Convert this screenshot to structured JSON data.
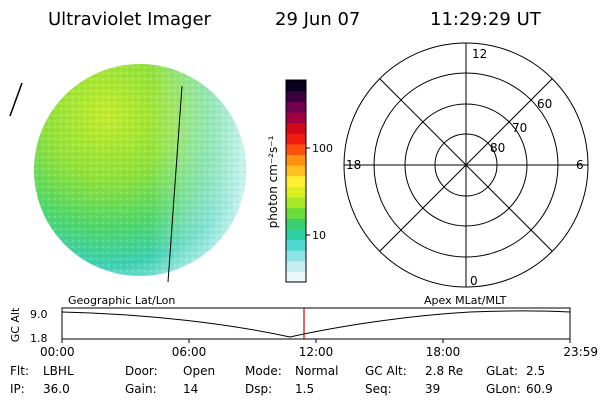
{
  "header": {
    "title": "Ultraviolet Imager",
    "date": "29 Jun 07",
    "time": "11:29:29 UT"
  },
  "colorbar": {
    "unit_label": "photon cm⁻²s⁻¹",
    "ticks": [
      "100",
      "10"
    ],
    "colors": [
      "#e8f8fb",
      "#c6ecf0",
      "#8fe3e8",
      "#4fd8d0",
      "#2ecfa0",
      "#3ad070",
      "#6adb3c",
      "#a6e82a",
      "#d8f020",
      "#ffee33",
      "#ffc020",
      "#ff9010",
      "#ff5010",
      "#f01a10",
      "#d00818",
      "#a00040",
      "#700050",
      "#3a0040",
      "#0a0020"
    ]
  },
  "polar_plot": {
    "clock_labels": [
      "12",
      "18",
      "6",
      "0"
    ],
    "lat_labels": [
      "60",
      "70",
      "80"
    ]
  },
  "timeline": {
    "left_label": "Geographic Lat/Lon",
    "right_label": "Apex MLat/MLT",
    "axis_name": "GC Alt",
    "axis_ticks": [
      "9.0",
      "1.8"
    ],
    "time_ticks": [
      "00:00",
      "06:00",
      "12:00",
      "18:00",
      "23:59"
    ],
    "current_time_color": "#d00000"
  },
  "info": {
    "row1": [
      {
        "label": "Flt:",
        "value": "LBHL"
      },
      {
        "label": "Door:",
        "value": "Open"
      },
      {
        "label": "Mode:",
        "value": "Normal"
      },
      {
        "label": "GC Alt:",
        "value": "2.8 Re"
      },
      {
        "label": "GLat:",
        "value": "2.5"
      }
    ],
    "row2": [
      {
        "label": "IP:",
        "value": "36.0"
      },
      {
        "label": "Gain:",
        "value": "14"
      },
      {
        "label": "Dsp:",
        "value": "1.5"
      },
      {
        "label": "Seq:",
        "value": "39"
      },
      {
        "label": "GLon:",
        "value": "60.9"
      }
    ]
  }
}
